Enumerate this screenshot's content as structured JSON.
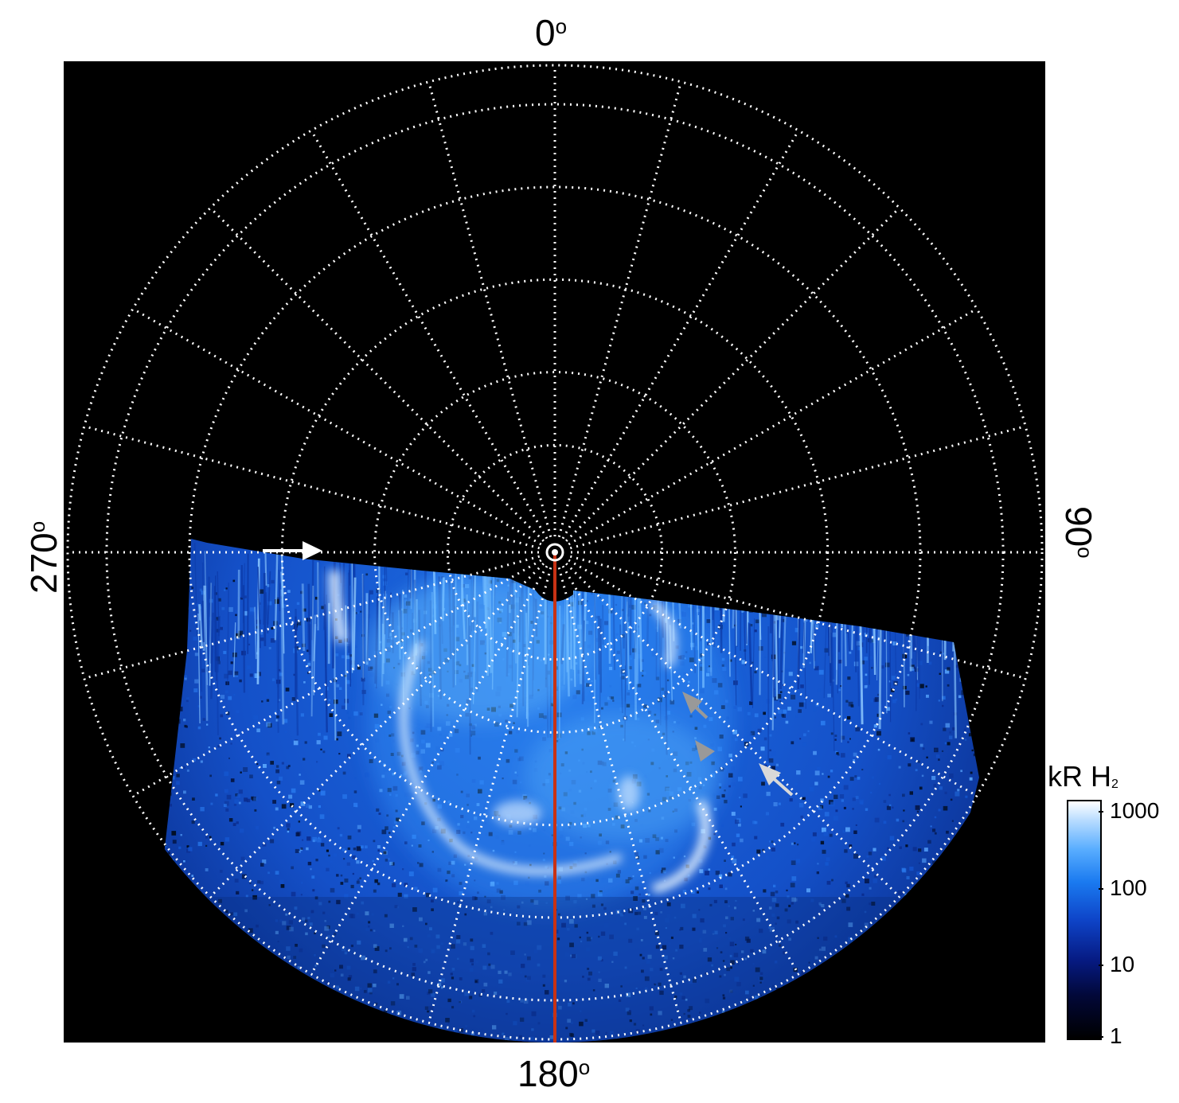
{
  "labels": {
    "top": "0",
    "bottom": "180",
    "left": "270",
    "right": "90",
    "degree_symbol": "o"
  },
  "colorbar": {
    "title": "kR H",
    "title_sub": "2",
    "ticks": [
      "1000",
      "100",
      "10",
      "1"
    ],
    "scale": "log",
    "range": [
      1,
      1000
    ],
    "colors": [
      "#000000",
      "#061a82",
      "#1a7af0",
      "#ffffff"
    ]
  },
  "colors": {
    "background": "#000000",
    "grid": "#ffffff",
    "meridian": "#c83214",
    "arrow_white": "#ffffff",
    "arrow_gray": "#999999",
    "aurora_main": "#1e64dc"
  },
  "grid": {
    "meridian_count": 24,
    "ring_count": 6
  },
  "annotations": [
    {
      "name": "arrow-white-left",
      "color": "white"
    },
    {
      "name": "arrow-gray-upper",
      "color": "gray"
    },
    {
      "name": "arrow-gray-lower",
      "color": "gray"
    },
    {
      "name": "arrow-white-right",
      "color": "white"
    }
  ]
}
